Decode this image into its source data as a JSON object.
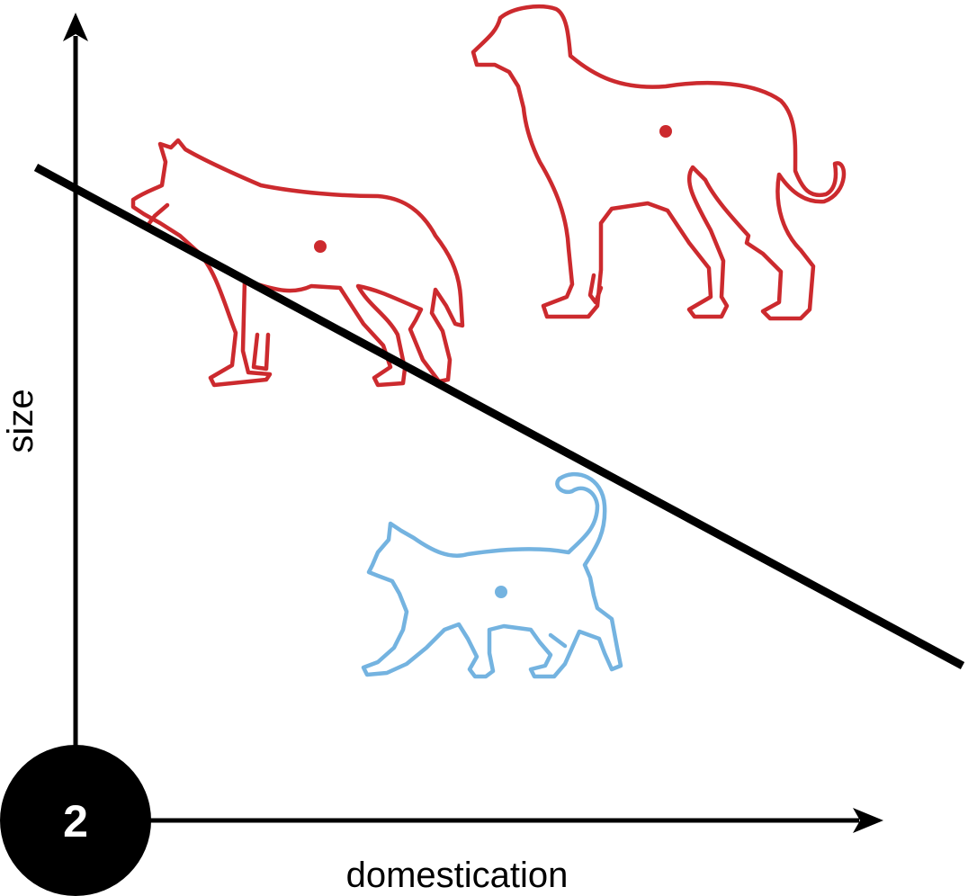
{
  "axes": {
    "x_label": "domestication",
    "y_label": "size"
  },
  "badge": {
    "number": "2"
  },
  "animals": [
    {
      "name": "wolf",
      "class": "red"
    },
    {
      "name": "dog",
      "class": "red"
    },
    {
      "name": "cat",
      "class": "blue"
    }
  ],
  "colors": {
    "red_class": "#cc2a2e",
    "blue_class": "#74b3e0",
    "ink": "#000000"
  }
}
